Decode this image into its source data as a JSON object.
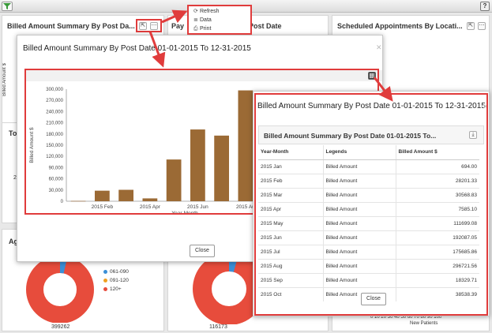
{
  "help_label": "?",
  "panels": {
    "billed_title": "Billed Amount Summary By Post Da...",
    "billed_axis": "Billed Amount $",
    "pay_title": "Pay",
    "pay_title_tail": "Post Date",
    "sched_title": "Scheduled Appointments By Locati...",
    "to_label": "To",
    "two_label": "2",
    "ag_label": "Ag",
    "donut1_total": "399262",
    "donut2_total": "116173",
    "new_patients_label": "New Patients",
    "x_ticks": [
      "0",
      "10",
      "20",
      "30",
      "40",
      "50",
      "60",
      "70",
      "80",
      "90",
      "100"
    ]
  },
  "legend": [
    {
      "label": "061-090",
      "color": "#3a8fd6"
    },
    {
      "label": "091-120",
      "color": "#f0a020"
    },
    {
      "label": "120+",
      "color": "#e74c3c"
    }
  ],
  "context_menu": {
    "items": [
      {
        "label": "Refresh",
        "icon": "refresh-icon",
        "glyph": "⟳"
      },
      {
        "label": "Data",
        "icon": "list-icon",
        "glyph": "≣"
      },
      {
        "label": "Print",
        "icon": "print-icon",
        "glyph": "⎙"
      }
    ]
  },
  "chart_modal": {
    "title": "Billed Amount Summary By Post Date 01-01-2015 To 12-31-2015",
    "close_label": "Close"
  },
  "data_modal": {
    "title": "Billed Amount Summary By Post Date 01-01-2015 To 12-31-2015",
    "inner_title": "Billed Amount Summary By Post Date 01-01-2015 To...",
    "headers": [
      "Year-Month",
      "Legends",
      "Billed Amount $"
    ],
    "rows": [
      [
        "2015 Jan",
        "Billed Amount",
        "694.00"
      ],
      [
        "2015 Feb",
        "Billed Amount",
        "28201.33"
      ],
      [
        "2015 Mar",
        "Billed Amount",
        "30568.83"
      ],
      [
        "2015 Apr",
        "Billed Amount",
        "7585.10"
      ],
      [
        "2015 May",
        "Billed Amount",
        "111699.08"
      ],
      [
        "2015 Jun",
        "Billed Amount",
        "192087.05"
      ],
      [
        "2015 Jul",
        "Billed Amount",
        "175685.86"
      ],
      [
        "2015 Aug",
        "Billed Amount",
        "296721.56"
      ],
      [
        "2015 Sep",
        "Billed Amount",
        "18329.71"
      ],
      [
        "2015 Oct",
        "Billed Amount",
        "38538.39"
      ]
    ],
    "close_label": "Close"
  },
  "colors": {
    "bar": "#9b6a35",
    "annotation": "#e03c3c",
    "donut_red": "#e74c3c"
  },
  "chart_data": {
    "type": "bar",
    "categories": [
      "2015 Jan",
      "2015 Feb",
      "2015 Mar",
      "2015 Apr",
      "2015 May",
      "2015 Jun",
      "2015 Jul",
      "2015 Aug"
    ],
    "values": [
      694,
      28201,
      30569,
      7585,
      111699,
      192087,
      175686,
      296722
    ],
    "xlabel": "Year-Month",
    "ylabel": "Billed Amount $",
    "ylim": [
      0,
      300000
    ],
    "y_ticks": [
      "0",
      "30,000",
      "60,000",
      "90,000",
      "120,000",
      "150,000",
      "180,000",
      "210,000",
      "240,000",
      "270,000",
      "300,000"
    ],
    "x_tick_labels": [
      "2015 Feb",
      "2015 Apr",
      "2015 Jun",
      "2015 Au"
    ],
    "x_tick_index": [
      1,
      3,
      5,
      7
    ],
    "grid": false
  }
}
